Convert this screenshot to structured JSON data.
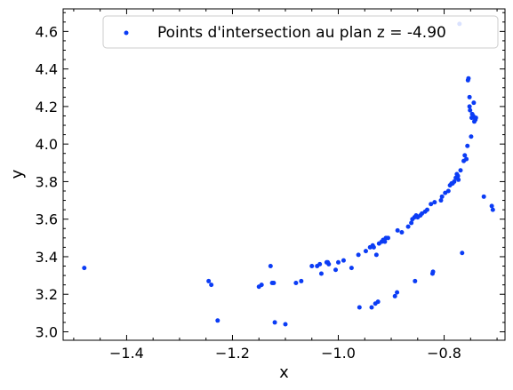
{
  "chart_data": {
    "type": "scatter",
    "title": "",
    "xlabel": "x",
    "ylabel": "y",
    "xlim": [
      -1.52,
      -0.685
    ],
    "ylim": [
      2.955,
      4.72
    ],
    "x_ticks": [
      -1.4,
      -1.2,
      -1.0,
      -0.8
    ],
    "x_tick_labels": [
      "−1.4",
      "−1.2",
      "−1.0",
      "−0.8"
    ],
    "y_ticks": [
      3.0,
      3.2,
      3.4,
      3.6,
      3.8,
      4.0,
      4.2,
      4.4,
      4.6
    ],
    "y_tick_labels": [
      "3.0",
      "3.2",
      "3.4",
      "3.6",
      "3.8",
      "4.0",
      "4.2",
      "4.4",
      "4.6"
    ],
    "grid": false,
    "legend_position": "top-right",
    "series": [
      {
        "name": "Points d'intersection au plan z = -4.90",
        "color": "#0b3cf5",
        "points": [
          [
            -1.48,
            3.34
          ],
          [
            -1.245,
            3.27
          ],
          [
            -1.24,
            3.25
          ],
          [
            -1.228,
            3.06
          ],
          [
            -1.15,
            3.24
          ],
          [
            -1.145,
            3.25
          ],
          [
            -1.128,
            3.35
          ],
          [
            -1.125,
            3.26
          ],
          [
            -1.122,
            3.26
          ],
          [
            -1.12,
            3.05
          ],
          [
            -1.1,
            3.04
          ],
          [
            -1.08,
            3.26
          ],
          [
            -1.07,
            3.27
          ],
          [
            -1.05,
            3.35
          ],
          [
            -1.04,
            3.35
          ],
          [
            -1.035,
            3.36
          ],
          [
            -1.032,
            3.31
          ],
          [
            -1.022,
            3.37
          ],
          [
            -1.02,
            3.37
          ],
          [
            -1.018,
            3.36
          ],
          [
            -1.005,
            3.33
          ],
          [
            -1.0,
            3.37
          ],
          [
            -0.99,
            3.38
          ],
          [
            -0.975,
            3.34
          ],
          [
            -0.962,
            3.41
          ],
          [
            -0.96,
            3.13
          ],
          [
            -0.948,
            3.43
          ],
          [
            -0.94,
            3.45
          ],
          [
            -0.937,
            3.13
          ],
          [
            -0.935,
            3.46
          ],
          [
            -0.933,
            3.45
          ],
          [
            -0.93,
            3.15
          ],
          [
            -0.928,
            3.41
          ],
          [
            -0.925,
            3.16
          ],
          [
            -0.923,
            3.47
          ],
          [
            -0.918,
            3.48
          ],
          [
            -0.915,
            3.49
          ],
          [
            -0.912,
            3.48
          ],
          [
            -0.91,
            3.5
          ],
          [
            -0.906,
            3.5
          ],
          [
            -0.893,
            3.19
          ],
          [
            -0.889,
            3.21
          ],
          [
            -0.888,
            3.54
          ],
          [
            -0.88,
            3.53
          ],
          [
            -0.868,
            3.56
          ],
          [
            -0.862,
            3.58
          ],
          [
            -0.86,
            3.6
          ],
          [
            -0.856,
            3.61
          ],
          [
            -0.855,
            3.27
          ],
          [
            -0.853,
            3.62
          ],
          [
            -0.85,
            3.61
          ],
          [
            -0.845,
            3.62
          ],
          [
            -0.842,
            3.63
          ],
          [
            -0.836,
            3.64
          ],
          [
            -0.832,
            3.65
          ],
          [
            -0.825,
            3.68
          ],
          [
            -0.822,
            3.31
          ],
          [
            -0.821,
            3.32
          ],
          [
            -0.818,
            3.69
          ],
          [
            -0.806,
            3.7
          ],
          [
            -0.804,
            3.72
          ],
          [
            -0.798,
            3.74
          ],
          [
            -0.792,
            3.75
          ],
          [
            -0.789,
            3.78
          ],
          [
            -0.786,
            3.79
          ],
          [
            -0.784,
            3.79
          ],
          [
            -0.781,
            3.8
          ],
          [
            -0.778,
            3.82
          ],
          [
            -0.776,
            3.84
          ],
          [
            -0.774,
            3.83
          ],
          [
            -0.773,
            3.81
          ],
          [
            -0.771,
            4.64
          ],
          [
            -0.769,
            3.86
          ],
          [
            -0.766,
            3.42
          ],
          [
            -0.763,
            3.91
          ],
          [
            -0.761,
            3.94
          ],
          [
            -0.758,
            3.92
          ],
          [
            -0.756,
            3.99
          ],
          [
            -0.755,
            4.34
          ],
          [
            -0.754,
            4.35
          ],
          [
            -0.752,
            4.2
          ],
          [
            -0.752,
            4.25
          ],
          [
            -0.751,
            4.18
          ],
          [
            -0.749,
            4.04
          ],
          [
            -0.748,
            4.14
          ],
          [
            -0.747,
            4.16
          ],
          [
            -0.745,
            4.15
          ],
          [
            -0.744,
            4.22
          ],
          [
            -0.743,
            4.12
          ],
          [
            -0.741,
            4.13
          ],
          [
            -0.74,
            4.14
          ],
          [
            -0.725,
            3.72
          ],
          [
            -0.71,
            3.67
          ],
          [
            -0.708,
            3.65
          ]
        ]
      }
    ]
  }
}
